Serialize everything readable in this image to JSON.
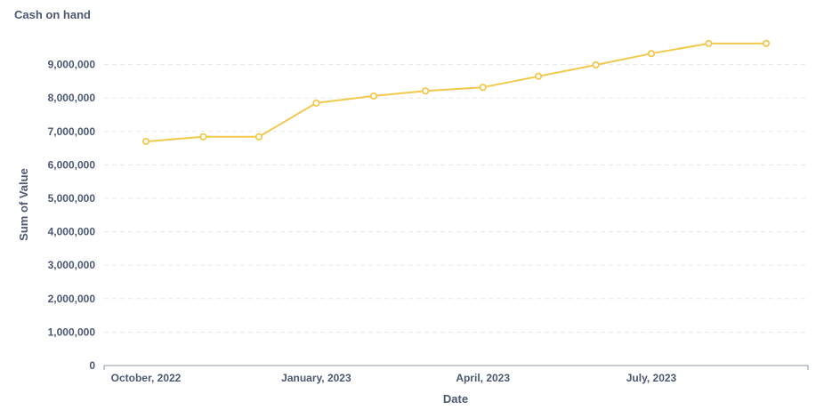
{
  "chart_data": {
    "type": "line",
    "title": "Cash on hand",
    "xlabel": "Date",
    "ylabel": "Sum of Value",
    "ylim": [
      0,
      10000000
    ],
    "y_ticks": [
      0,
      1000000,
      2000000,
      3000000,
      4000000,
      5000000,
      6000000,
      7000000,
      8000000,
      9000000
    ],
    "y_tick_labels": [
      "0",
      "1,000,000",
      "2,000,000",
      "3,000,000",
      "4,000,000",
      "5,000,000",
      "6,000,000",
      "7,000,000",
      "8,000,000",
      "9,000,000"
    ],
    "x_tick_labels": [
      {
        "label": "October, 2022",
        "date": "2022-10-01"
      },
      {
        "label": "January, 2023",
        "date": "2023-01-01"
      },
      {
        "label": "April, 2023",
        "date": "2023-04-01"
      },
      {
        "label": "July, 2023",
        "date": "2023-07-01"
      }
    ],
    "grid": "horizontal dashed",
    "series": [
      {
        "color": "#f2c94c",
        "x": [
          "2022-10-01",
          "2022-11-01",
          "2022-12-01",
          "2023-01-01",
          "2023-02-01",
          "2023-03-01",
          "2023-04-01",
          "2023-05-01",
          "2023-06-01",
          "2023-07-01",
          "2023-08-01",
          "2023-09-01"
        ],
        "values": [
          6700000,
          6840000,
          6840000,
          7850000,
          8060000,
          8210000,
          8320000,
          8650000,
          8990000,
          9330000,
          9630000,
          9630000
        ]
      }
    ]
  }
}
